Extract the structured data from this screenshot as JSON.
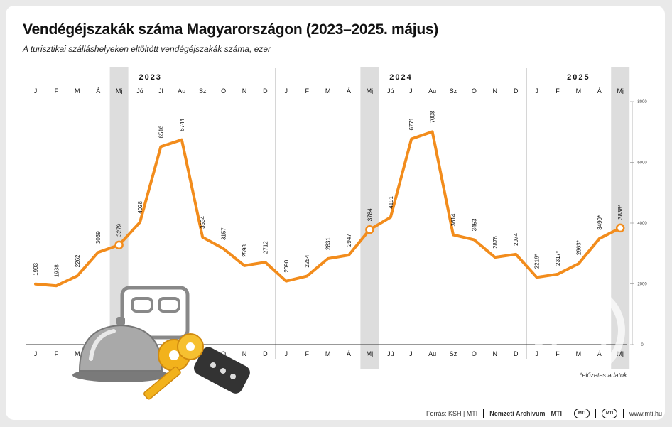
{
  "title": "Vendégéjszakák száma Magyarországon (2023–2025. május)",
  "subtitle": "A turisztikai szálláshelyeken eltöltött vendégéjszakák száma, ezer",
  "note": "*előzetes adatok",
  "footer": {
    "source": "Forrás: KSH | MTI",
    "archive": "Nemzeti Archívum",
    "brand": "MTI",
    "site": "www.mti.hu",
    "logo_text": "MTI"
  },
  "colors": {
    "line": "#f28c1c",
    "highlight": "#dddddd",
    "text": "#111111",
    "grid": "#555555"
  },
  "chart_data": {
    "type": "line",
    "years": [
      {
        "label": "2023",
        "start": 0,
        "end": 11
      },
      {
        "label": "2024",
        "start": 12,
        "end": 23
      },
      {
        "label": "2025",
        "start": 24,
        "end": 28
      }
    ],
    "months": [
      "J",
      "F",
      "M",
      "Á",
      "Mj",
      "Jú",
      "Jl",
      "Au",
      "Sz",
      "O",
      "N",
      "D",
      "J",
      "F",
      "M",
      "Á",
      "Mj",
      "Jú",
      "Jl",
      "Au",
      "Sz",
      "O",
      "N",
      "D",
      "J",
      "F",
      "M",
      "Á",
      "Mj"
    ],
    "highlight_indices": [
      4,
      16,
      28
    ],
    "series": [
      {
        "values": [
          1993,
          1938,
          2262,
          3039,
          3279,
          4028,
          6516,
          6744,
          3534,
          3157,
          2598,
          2712,
          2090,
          2254,
          2831,
          2947,
          3784,
          4191,
          6771,
          7008,
          3614,
          3453,
          2876,
          2974,
          2216,
          2317,
          2663,
          3490,
          3838
        ],
        "labels": [
          "1993",
          "1938",
          "2262",
          "3039",
          "3279",
          "4028",
          "6516",
          "6744",
          "3534",
          "3157",
          "2598",
          "2712",
          "2090",
          "2254",
          "2831",
          "2947",
          "3784",
          "4191",
          "6771",
          "7008",
          "3614",
          "3453",
          "2876",
          "2974",
          "2216*",
          "2317*",
          "2663*",
          "3490*",
          "3838*"
        ]
      }
    ],
    "ylim": [
      0,
      8000
    ],
    "yticks": [
      "0",
      "2000",
      "4000",
      "6000",
      "8000"
    ]
  }
}
